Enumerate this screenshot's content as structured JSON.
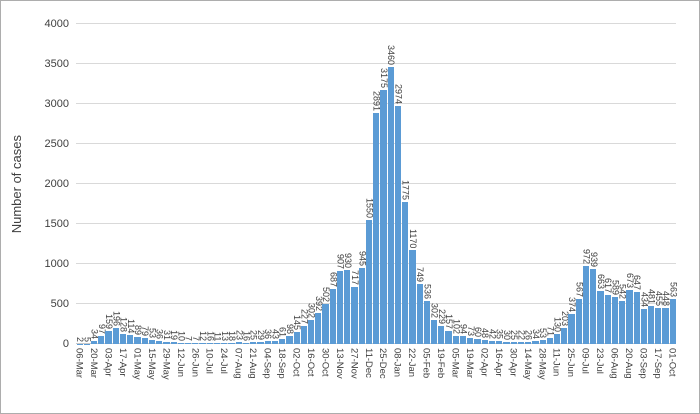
{
  "chart_data": {
    "type": "bar",
    "title": "",
    "xlabel": "",
    "ylabel": "Number of cases",
    "ylim": [
      0,
      4000
    ],
    "yticks": [
      0,
      500,
      1000,
      1500,
      2000,
      2500,
      3000,
      3500,
      4000
    ],
    "grid": "horizontal",
    "legend": "none",
    "bar_color": "#5b9bd5",
    "gridline_color": "#d9d9d9",
    "text_color": "#404040",
    "data_labels": "rotated, one above each bar, equal to bar value",
    "x_tick_every": 2,
    "x_tick_labels": [
      "06-Mar",
      "20-Mar",
      "03-Apr",
      "17-Apr",
      "01-May",
      "15-May",
      "29-May",
      "12-Jun",
      "26-Jun",
      "10-Jul",
      "24-Jul",
      "07-Aug",
      "21-Aug",
      "04-Sep",
      "18-Sep",
      "02-Oct",
      "16-Oct",
      "30-Oct",
      "13-Nov",
      "27-Nov",
      "11-Dec",
      "25-Dec",
      "08-Jan",
      "22-Jan",
      "05-Feb",
      "19-Feb",
      "05-Mar",
      "19-Mar",
      "02-Apr",
      "16-Apr",
      "30-Apr",
      "14-May",
      "28-May",
      "11-Jun",
      "25-Jun",
      "09-Jul",
      "23-Jul",
      "06-Aug",
      "20-Aug",
      "03-Sep",
      "17-Sep",
      "01-Oct"
    ],
    "values": [
      2,
      5,
      34,
      97,
      159,
      196,
      128,
      114,
      89,
      79,
      53,
      36,
      31,
      19,
      10,
      7,
      7,
      12,
      16,
      11,
      13,
      18,
      23,
      16,
      25,
      29,
      36,
      43,
      61,
      98,
      145,
      227,
      302,
      392,
      502,
      687,
      907,
      930,
      717,
      945,
      1550,
      2891,
      3175,
      3460,
      2974,
      1775,
      1170,
      749,
      536,
      302,
      229,
      157,
      102,
      94,
      73,
      60,
      48,
      42,
      35,
      30,
      25,
      22,
      26,
      34,
      53,
      71,
      130,
      203,
      374,
      567,
      972,
      939,
      663,
      617,
      589,
      542,
      673,
      647,
      434,
      481,
      455,
      448,
      563
    ]
  }
}
